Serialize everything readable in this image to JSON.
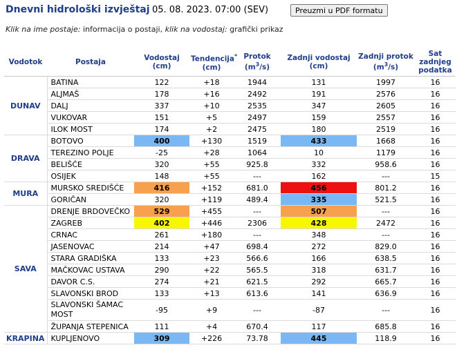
{
  "header": {
    "title": "Dnevni hidrološki izvještaj",
    "datetime": "05. 08. 2023. 07:00 (SEV)",
    "pdf_button": "Preuzmi u PDF formatu"
  },
  "hint": {
    "p1": "Klik na ime postaje:",
    "p2": " informacija o postaji, ",
    "p3": "klik na vodostaj:",
    "p4": " grafički prikaz"
  },
  "table": {
    "headers": {
      "vodotok": "Vodotok",
      "postaja": "Postaja",
      "vodostaj": "Vodostaj",
      "vodostaj_unit": "(cm)",
      "tendencija": "Tendencija",
      "tendencija_sup": "*",
      "tendencija_unit": "(cm)",
      "protok": "Protok",
      "protok_unit": "(m",
      "protok_unit_sup": "3",
      "protok_unit_end": "/s)",
      "zadnji_vodostaj": "Zadnji vodostaj",
      "zadnji_vodostaj_unit": "(cm)",
      "zadnji_protok": "Zadnji protok",
      "zadnji_protok_unit": "(m",
      "zadnji_protok_unit_sup": "3",
      "zadnji_protok_unit_end": "/s)",
      "sat": "Sat zadnjeg podatka"
    },
    "groups": [
      {
        "river": "DUNAV",
        "rows": [
          {
            "station": "BATINA",
            "level": "122",
            "trend": "+18",
            "flow": "1944",
            "last_level": "131",
            "last_flow": "1997",
            "hour": "16"
          },
          {
            "station": "ALJMAŠ",
            "level": "178",
            "trend": "+16",
            "flow": "2492",
            "last_level": "191",
            "last_flow": "2576",
            "hour": "16"
          },
          {
            "station": "DALJ",
            "level": "337",
            "trend": "+10",
            "flow": "2535",
            "last_level": "347",
            "last_flow": "2605",
            "hour": "16"
          },
          {
            "station": "VUKOVAR",
            "level": "151",
            "trend": "+5",
            "flow": "2497",
            "last_level": "159",
            "last_flow": "2557",
            "hour": "16"
          },
          {
            "station": "ILOK MOST",
            "level": "174",
            "trend": "+2",
            "flow": "2475",
            "last_level": "180",
            "last_flow": "2519",
            "hour": "16"
          }
        ]
      },
      {
        "river": "DRAVA",
        "rows": [
          {
            "station": "BOTOVO",
            "level": "400",
            "level_alert": "blue",
            "trend": "+130",
            "flow": "1519",
            "last_level": "433",
            "last_alert": "blue",
            "last_flow": "1668",
            "hour": "16"
          },
          {
            "station": "TEREZINO POLJE",
            "level": "-25",
            "trend": "+28",
            "flow": "1064",
            "last_level": "10",
            "last_flow": "1179",
            "hour": "16"
          },
          {
            "station": "BELIŠĆE",
            "level": "320",
            "trend": "+55",
            "flow": "925.8",
            "last_level": "332",
            "last_flow": "958.6",
            "hour": "16"
          },
          {
            "station": "OSIJEK",
            "level": "148",
            "trend": "+55",
            "flow": "---",
            "last_level": "162",
            "last_flow": "---",
            "hour": "15"
          }
        ]
      },
      {
        "river": "MURA",
        "rows": [
          {
            "station": "MURSKO SREDIŠĆE",
            "level": "416",
            "level_alert": "orange",
            "trend": "+152",
            "flow": "681.0",
            "last_level": "456",
            "last_alert": "red",
            "last_flow": "801.2",
            "hour": "16"
          },
          {
            "station": "GORIČAN",
            "level": "320",
            "trend": "+119",
            "flow": "489.4",
            "last_level": "335",
            "last_alert": "blue",
            "last_flow": "521.5",
            "hour": "16"
          }
        ]
      },
      {
        "river": "SAVA",
        "rows": [
          {
            "station": "DRENJE BRDOVEČKO",
            "level": "529",
            "level_alert": "orange",
            "trend": "+455",
            "flow": "---",
            "last_level": "507",
            "last_alert": "orange",
            "last_flow": "---",
            "hour": "16"
          },
          {
            "station": "ZAGREB",
            "level": "402",
            "level_alert": "yellow",
            "trend": "+446",
            "flow": "2306",
            "last_level": "428",
            "last_alert": "yellow",
            "last_flow": "2472",
            "hour": "16"
          },
          {
            "station": "CRNAC",
            "level": "261",
            "trend": "+180",
            "flow": "---",
            "last_level": "348",
            "last_flow": "---",
            "hour": "16"
          },
          {
            "station": "JASENOVAC",
            "level": "214",
            "trend": "+47",
            "flow": "698.4",
            "last_level": "272",
            "last_flow": "829.0",
            "hour": "16"
          },
          {
            "station": "STARA GRADIŠKA",
            "level": "133",
            "trend": "+23",
            "flow": "566.6",
            "last_level": "166",
            "last_flow": "638.5",
            "hour": "16"
          },
          {
            "station": "MAČKOVAC USTAVA",
            "level": "290",
            "trend": "+22",
            "flow": "565.5",
            "last_level": "318",
            "last_flow": "631.7",
            "hour": "16"
          },
          {
            "station": "DAVOR C.S.",
            "level": "274",
            "trend": "+21",
            "flow": "621.5",
            "last_level": "292",
            "last_flow": "665.7",
            "hour": "16"
          },
          {
            "station": "SLAVONSKI BROD",
            "level": "133",
            "trend": "+13",
            "flow": "613.6",
            "last_level": "141",
            "last_flow": "636.9",
            "hour": "16"
          },
          {
            "station": "SLAVONSKI ŠAMAC MOST",
            "level": "-95",
            "trend": "+9",
            "flow": "---",
            "last_level": "-87",
            "last_flow": "---",
            "hour": "16",
            "tall": true
          },
          {
            "station": "ŽUPANJA STEPENICA",
            "level": "111",
            "trend": "+4",
            "flow": "670.4",
            "last_level": "117",
            "last_flow": "685.8",
            "hour": "16"
          }
        ]
      },
      {
        "river": "KRAPINA",
        "rows": [
          {
            "station": "KUPLJENOVO",
            "level": "309",
            "level_alert": "blue",
            "trend": "+226",
            "flow": "73.78",
            "last_level": "445",
            "last_alert": "blue",
            "last_flow": "118.9",
            "hour": "16"
          }
        ]
      }
    ]
  }
}
